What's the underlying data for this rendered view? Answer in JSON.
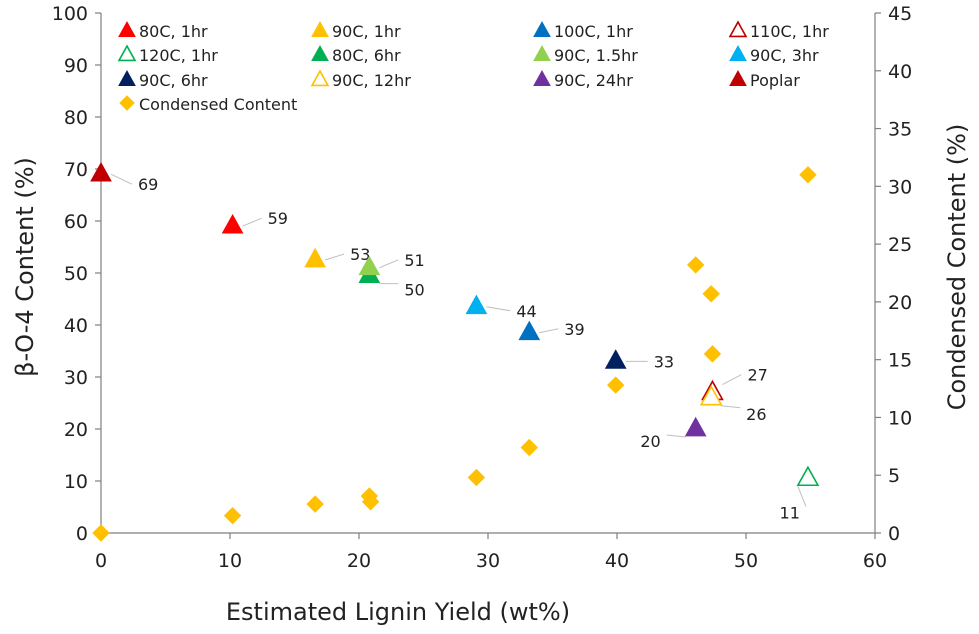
{
  "chart_data": {
    "type": "scatter",
    "xlabel": "Estimated Lignin Yield (wt%)",
    "ylabel": "β-O-4 Content (%)",
    "y2label": "Condensed Content (%)",
    "xlim": [
      0,
      60
    ],
    "ylim": [
      0,
      100
    ],
    "y2lim": [
      0,
      45
    ],
    "xticks": [
      0,
      10,
      20,
      30,
      40,
      50,
      60
    ],
    "yticks": [
      0,
      10,
      20,
      30,
      40,
      50,
      60,
      70,
      80,
      90,
      100
    ],
    "y2ticks": [
      0,
      5,
      10,
      15,
      20,
      25,
      30,
      35,
      40,
      45
    ],
    "grid": false,
    "legend_position": "top",
    "series": [
      {
        "name": "80C, 1hr",
        "marker": "triangle",
        "filled": true,
        "color": "#ff0000",
        "points": [
          {
            "x": 10.2,
            "y": 59,
            "label": "59"
          }
        ]
      },
      {
        "name": "90C, 1hr",
        "marker": "triangle",
        "filled": true,
        "color": "#ffc000",
        "points": [
          {
            "x": 16.6,
            "y": 52.5,
            "label": "53"
          }
        ]
      },
      {
        "name": "100C, 1hr",
        "marker": "triangle",
        "filled": true,
        "color": "#0070c0",
        "points": [
          {
            "x": 33.2,
            "y": 38.5,
            "label": "39"
          }
        ]
      },
      {
        "name": "110C, 1hr",
        "marker": "triangle",
        "filled": false,
        "color": "#c00000",
        "points": [
          {
            "x": 47.4,
            "y": 27,
            "label": "27"
          }
        ]
      },
      {
        "name": "120C, 1hr",
        "marker": "triangle",
        "filled": false,
        "color": "#00b050",
        "points": [
          {
            "x": 54.8,
            "y": 10.5,
            "label": "11"
          }
        ]
      },
      {
        "name": "80C, 6hr",
        "marker": "triangle",
        "filled": true,
        "color": "#00b050",
        "points": [
          {
            "x": 20.8,
            "y": 49.5,
            "label": "50"
          }
        ]
      },
      {
        "name": "90C, 1.5hr",
        "marker": "triangle",
        "filled": true,
        "color": "#92d050",
        "points": [
          {
            "x": 20.8,
            "y": 51,
            "label": "51"
          }
        ]
      },
      {
        "name": "90C, 3hr",
        "marker": "triangle",
        "filled": true,
        "color": "#00b0f0",
        "points": [
          {
            "x": 29.1,
            "y": 43.5,
            "label": "44"
          }
        ]
      },
      {
        "name": "90C, 6hr",
        "marker": "triangle",
        "filled": true,
        "color": "#002060",
        "points": [
          {
            "x": 39.9,
            "y": 33,
            "label": "33"
          }
        ]
      },
      {
        "name": "90C, 12hr",
        "marker": "triangle",
        "filled": false,
        "color": "#ffc000",
        "points": [
          {
            "x": 47.3,
            "y": 26,
            "label": "26"
          }
        ]
      },
      {
        "name": "90C, 24hr",
        "marker": "triangle",
        "filled": true,
        "color": "#7030a0",
        "points": [
          {
            "x": 46.1,
            "y": 20,
            "label": "20"
          }
        ]
      },
      {
        "name": "Poplar",
        "marker": "triangle",
        "filled": true,
        "color": "#c00000",
        "points": [
          {
            "x": 0,
            "y": 69,
            "label": "69"
          }
        ]
      },
      {
        "name": "Condensed Content",
        "marker": "diamond",
        "filled": true,
        "color": "#ffc000",
        "axis": "right",
        "points": [
          {
            "x": 0,
            "y": 0
          },
          {
            "x": 10.2,
            "y": 1.5
          },
          {
            "x": 16.6,
            "y": 2.5
          },
          {
            "x": 20.8,
            "y": 3.2
          },
          {
            "x": 20.9,
            "y": 2.7
          },
          {
            "x": 29.1,
            "y": 4.8
          },
          {
            "x": 33.2,
            "y": 7.4
          },
          {
            "x": 39.9,
            "y": 12.8
          },
          {
            "x": 46.1,
            "y": 23.2
          },
          {
            "x": 47.3,
            "y": 20.7
          },
          {
            "x": 47.4,
            "y": 15.5
          },
          {
            "x": 54.8,
            "y": 31.0
          }
        ]
      }
    ]
  }
}
